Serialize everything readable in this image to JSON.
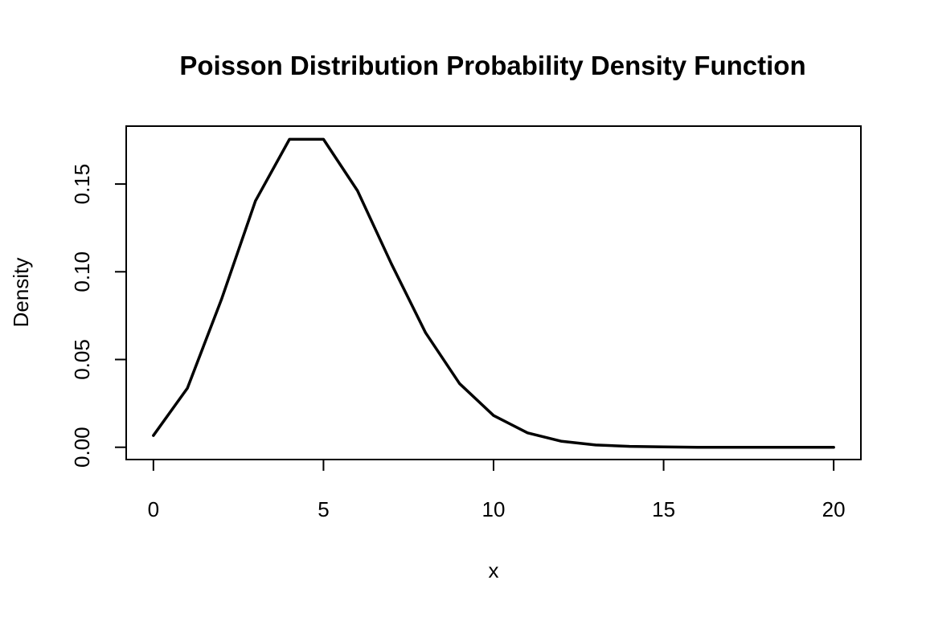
{
  "chart_data": {
    "type": "line",
    "title": "Poisson Distribution Probability Density Function",
    "xlabel": "x",
    "ylabel": "Density",
    "xlim": [
      -0.8,
      20.8
    ],
    "ylim": [
      -0.007,
      0.183
    ],
    "x_ticks": [
      0,
      5,
      10,
      15,
      20
    ],
    "x_tick_labels": [
      "0",
      "5",
      "10",
      "15",
      "20"
    ],
    "y_ticks": [
      0.0,
      0.05,
      0.1,
      0.15
    ],
    "y_tick_labels": [
      "0.00",
      "0.05",
      "0.10",
      "0.15"
    ],
    "grid": false,
    "line_color": "#000000",
    "x": [
      0,
      1,
      2,
      3,
      4,
      5,
      6,
      7,
      8,
      9,
      10,
      11,
      12,
      13,
      14,
      15,
      16,
      17,
      18,
      19,
      20
    ],
    "y": [
      0.0067,
      0.0337,
      0.0842,
      0.1404,
      0.1755,
      0.1755,
      0.1462,
      0.1044,
      0.0653,
      0.0363,
      0.0181,
      0.0082,
      0.0034,
      0.0013,
      0.0005,
      0.0002,
      0.0,
      0.0,
      0.0,
      0.0,
      0.0
    ]
  }
}
